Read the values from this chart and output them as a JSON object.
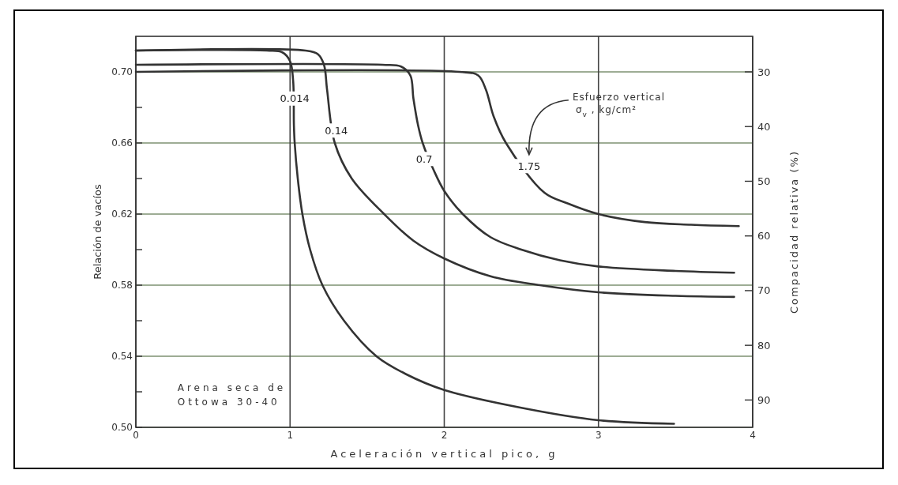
{
  "chart_data": {
    "type": "line",
    "xlabel": "Aceleración vertical pico, g",
    "ylabel": "Relación de vacíos",
    "y2label": "Compacidad relativa (%)",
    "xlim": [
      0,
      4
    ],
    "xticks": [
      0,
      1,
      2,
      3,
      4
    ],
    "ylim": [
      0.5,
      0.72
    ],
    "yticks": [
      {
        "value": 0.5,
        "label": "0.50"
      },
      {
        "value": 0.52,
        "label": null
      },
      {
        "value": 0.54,
        "label": "0.54"
      },
      {
        "value": 0.56,
        "label": null
      },
      {
        "value": 0.58,
        "label": "0.58"
      },
      {
        "value": 0.6,
        "label": null
      },
      {
        "value": 0.62,
        "label": "0.62"
      },
      {
        "value": 0.64,
        "label": null
      },
      {
        "value": 0.66,
        "label": "0.66"
      },
      {
        "value": 0.68,
        "label": null
      },
      {
        "value": 0.7,
        "label": "0.70"
      }
    ],
    "y2lim": [
      95,
      23.5
    ],
    "y2ticks": [
      30,
      40,
      50,
      60,
      70,
      80,
      90
    ],
    "grid": true,
    "marker": "none",
    "line_style": "solid",
    "series": [
      {
        "color": "#333333",
        "x": [
          0,
          0.85,
          0.95,
          1.0,
          1.02,
          1.025,
          1.03,
          1.05,
          1.08,
          1.13,
          1.21,
          1.35,
          1.56,
          1.75,
          2,
          2.5,
          3,
          3.49
        ],
        "values": [
          0.712,
          0.712,
          0.711,
          0.706,
          0.695,
          0.67,
          0.66,
          0.64,
          0.62,
          0.6,
          0.58,
          0.56,
          0.54,
          0.53,
          0.521,
          0.511,
          0.504,
          0.502
        ]
      },
      {
        "color": "#333333",
        "x": [
          0,
          1.1,
          1.18,
          1.22,
          1.24,
          1.29,
          1.4,
          1.61,
          1.8,
          2,
          2.3,
          2.62,
          3,
          3.5,
          3.88
        ],
        "values": [
          0.712,
          0.712,
          0.71,
          0.704,
          0.69,
          0.66,
          0.64,
          0.62,
          0.605,
          0.595,
          0.585,
          0.58,
          0.576,
          0.574,
          0.5734
        ]
      },
      {
        "color": "#333333",
        "x": [
          0,
          1.6,
          1.72,
          1.78,
          1.8,
          1.83,
          1.86,
          1.93,
          2,
          2.12,
          2.3,
          2.5,
          2.75,
          3,
          3.5,
          3.88
        ],
        "values": [
          0.704,
          0.704,
          0.703,
          0.698,
          0.685,
          0.67,
          0.66,
          0.645,
          0.633,
          0.62,
          0.607,
          0.6,
          0.594,
          0.5905,
          0.588,
          0.587
        ]
      },
      {
        "color": "#333333",
        "x": [
          0,
          2.1,
          2.22,
          2.27,
          2.32,
          2.4,
          2.65,
          2.8,
          3,
          3.3,
          3.6,
          3.91
        ],
        "values": [
          0.7,
          0.7,
          0.698,
          0.69,
          0.675,
          0.66,
          0.632,
          0.626,
          0.62,
          0.6155,
          0.614,
          0.6132
        ]
      }
    ],
    "annotations": [
      {
        "text": "0.014",
        "x": 1.03,
        "y": 0.685
      },
      {
        "text": "0.14",
        "x": 1.3,
        "y": 0.667
      },
      {
        "text": "0.7",
        "x": 1.87,
        "y": 0.651
      },
      {
        "text": "1.75",
        "x": 2.55,
        "y": 0.647
      },
      "Esfuerzo vertical σ$_{v}$ , kg/cm²",
      "Arena seca de Ottowa 30-40"
    ]
  }
}
